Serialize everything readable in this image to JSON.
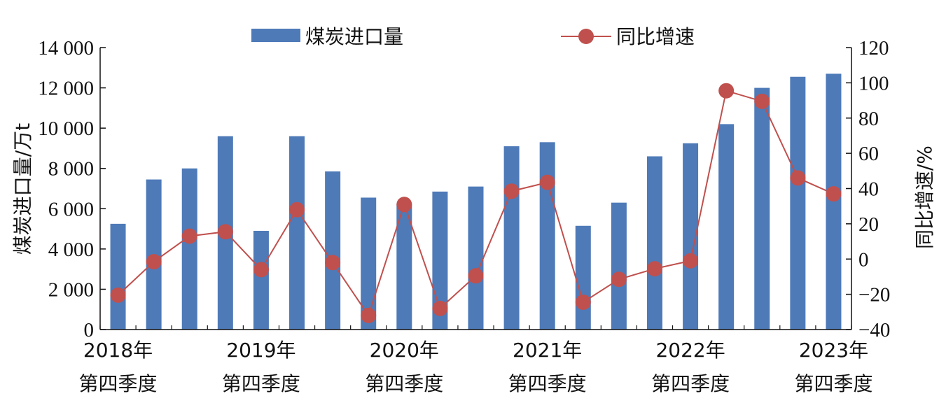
{
  "chart_data": {
    "type": "bar+line",
    "left_axis": {
      "label": "煤炭进口量/万t",
      "ylim": [
        0,
        14000
      ],
      "ticks": [
        {
          "value": 0,
          "label": "0"
        },
        {
          "value": 2000,
          "label": "2 000"
        },
        {
          "value": 4000,
          "label": "4 000"
        },
        {
          "value": 6000,
          "label": "6 000"
        },
        {
          "value": 8000,
          "label": "8 000"
        },
        {
          "value": 10000,
          "label": "10 000"
        },
        {
          "value": 12000,
          "label": "12 000"
        },
        {
          "value": 14000,
          "label": "14 000"
        }
      ]
    },
    "right_axis": {
      "label": "同比增速/%",
      "ylim": [
        -40,
        120
      ],
      "ticks": [
        {
          "value": -40,
          "label": "−40"
        },
        {
          "value": -20,
          "label": "−20"
        },
        {
          "value": 0,
          "label": "0"
        },
        {
          "value": 20,
          "label": "20"
        },
        {
          "value": 40,
          "label": "40"
        },
        {
          "value": 60,
          "label": "60"
        },
        {
          "value": 80,
          "label": "80"
        },
        {
          "value": 100,
          "label": "100"
        },
        {
          "value": 120,
          "label": "120"
        }
      ]
    },
    "x_labels": [
      {
        "index": 0,
        "line1": "2018年",
        "line2": "第四季度"
      },
      {
        "index": 4,
        "line1": "2019年",
        "line2": "第四季度"
      },
      {
        "index": 8,
        "line1": "2020年",
        "line2": "第四季度"
      },
      {
        "index": 12,
        "line1": "2021年",
        "line2": "第四季度"
      },
      {
        "index": 16,
        "line1": "2022年",
        "line2": "第四季度"
      },
      {
        "index": 20,
        "line1": "2023年",
        "line2": "第四季度"
      }
    ],
    "legend": {
      "bar": "煤炭进口量",
      "line": "同比增速",
      "placement": "top"
    },
    "colors": {
      "bar": "#4e7ab8",
      "line": "#c0504d",
      "axis": "#111111"
    },
    "series": [
      {
        "name": "煤炭进口量",
        "type": "bar",
        "axis": "left",
        "values": [
          5250,
          7450,
          8000,
          9600,
          4900,
          9600,
          7850,
          6550,
          6250,
          6850,
          7100,
          9100,
          9300,
          5150,
          6300,
          8600,
          9250,
          10200,
          12000,
          12550,
          12700
        ]
      },
      {
        "name": "同比增速",
        "type": "line",
        "axis": "right",
        "values": [
          -20.5,
          -1.5,
          13,
          15.5,
          -6,
          28,
          -2,
          -32,
          31,
          -28,
          -9.5,
          38.5,
          43.5,
          -24.5,
          -11.5,
          -5.5,
          -1,
          95.5,
          89.5,
          46,
          37
        ]
      }
    ]
  }
}
